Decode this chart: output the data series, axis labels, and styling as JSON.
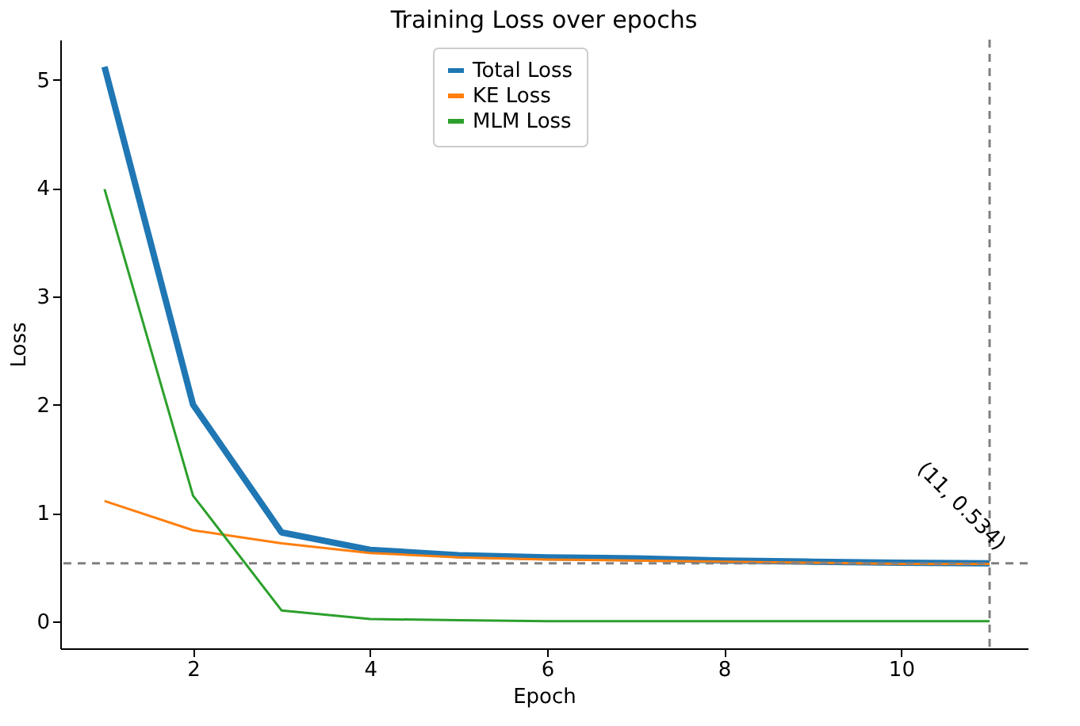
{
  "chart_data": {
    "type": "line",
    "title": "Training Loss over epochs",
    "xlabel": "Epoch",
    "ylabel": "Loss",
    "x": [
      1,
      2,
      3,
      4,
      5,
      6,
      7,
      8,
      9,
      10,
      11
    ],
    "series": [
      {
        "name": "Total Loss",
        "color": "#1f77b4",
        "values": [
          5.12,
          2.0,
          0.82,
          0.66,
          0.61,
          0.59,
          0.58,
          0.56,
          0.55,
          0.54,
          0.534
        ]
      },
      {
        "name": "KE Loss",
        "color": "#ff7f0e",
        "values": [
          1.11,
          0.84,
          0.72,
          0.63,
          0.59,
          0.57,
          0.56,
          0.55,
          0.54,
          0.53,
          0.53
        ]
      },
      {
        "name": "MLM Loss",
        "color": "#2ca02c",
        "values": [
          3.99,
          1.16,
          0.1,
          0.02,
          0.01,
          0,
          0,
          0,
          0,
          0,
          0
        ]
      }
    ],
    "xlim": [
      0.5,
      11.43
    ],
    "ylim": [
      -0.25,
      5.37
    ],
    "xticks": [
      2,
      4,
      6,
      8,
      10
    ],
    "yticks": [
      0,
      1,
      2,
      3,
      4,
      5
    ],
    "ref_lines": [
      {
        "axis": "x",
        "value": 11,
        "color": "#808080",
        "line_style": "dashed"
      },
      {
        "axis": "y",
        "value": 0.534,
        "color": "#808080",
        "line_style": "dashed"
      }
    ],
    "annotations": [
      {
        "text": "(11, 0.534)",
        "x": 11,
        "y": 0.534
      }
    ],
    "legend": "top",
    "grid": false,
    "line_style": "solid",
    "marker": "none"
  }
}
